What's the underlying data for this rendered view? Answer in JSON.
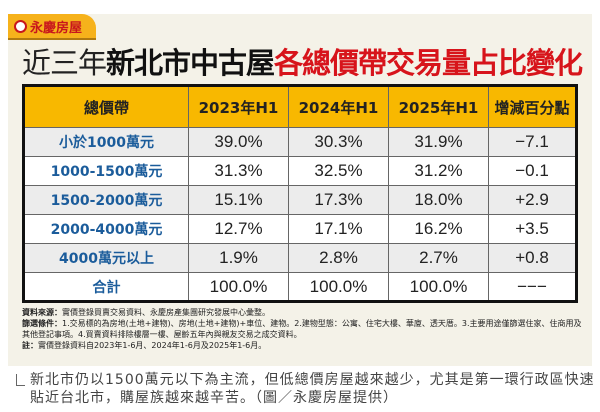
{
  "logo": "永慶房屋",
  "title": {
    "part1": "近三年",
    "part2": "新北市中古屋",
    "part3": "各總價帶交易量占比變化"
  },
  "table": {
    "headers": [
      "總價帶",
      "2023年H1",
      "2024年H1",
      "2025年H1",
      "增減百分點"
    ],
    "rows": [
      [
        "小於1000萬元",
        "39.0%",
        "30.3%",
        "31.9%",
        "−7.1"
      ],
      [
        "1000-1500萬元",
        "31.3%",
        "32.5%",
        "31.2%",
        "−0.1"
      ],
      [
        "1500-2000萬元",
        "15.1%",
        "17.3%",
        "18.0%",
        "+2.9"
      ],
      [
        "2000-4000萬元",
        "12.7%",
        "17.1%",
        "16.2%",
        "+3.5"
      ],
      [
        "4000萬元以上",
        "1.9%",
        "2.8%",
        "2.7%",
        "+0.8"
      ],
      [
        "合計",
        "100.0%",
        "100.0%",
        "100.0%",
        "−−−"
      ]
    ]
  },
  "notes": {
    "source_label": "資料來源：",
    "source": "實價登錄買賣交易資料、永慶房產集團研究發展中心彙整。",
    "filter_label": "篩選條件：",
    "filter": "1.交易標的為房地(土地+建物)、房地(土地+建物)+車位、建物。2.建物型態：公寓、住宅大樓、華廈、透天厝。3.主要用途僅篩選住家、住商用及其他登記事項。4.買賣資料排除樓層一樓、屋齡五年內與親友交易之成交資料。",
    "note_label": "註：",
    "note": "實價登錄資料自2023年1-6月、2024年1-6月及2025年1-6月。"
  },
  "caption": "新北市仍以1500萬元以下為主流，但低總價房屋越來越少，尤其是第一環行政區快速貼近台北市，購屋族越來越辛苦。（圖／永慶房屋提供）"
}
